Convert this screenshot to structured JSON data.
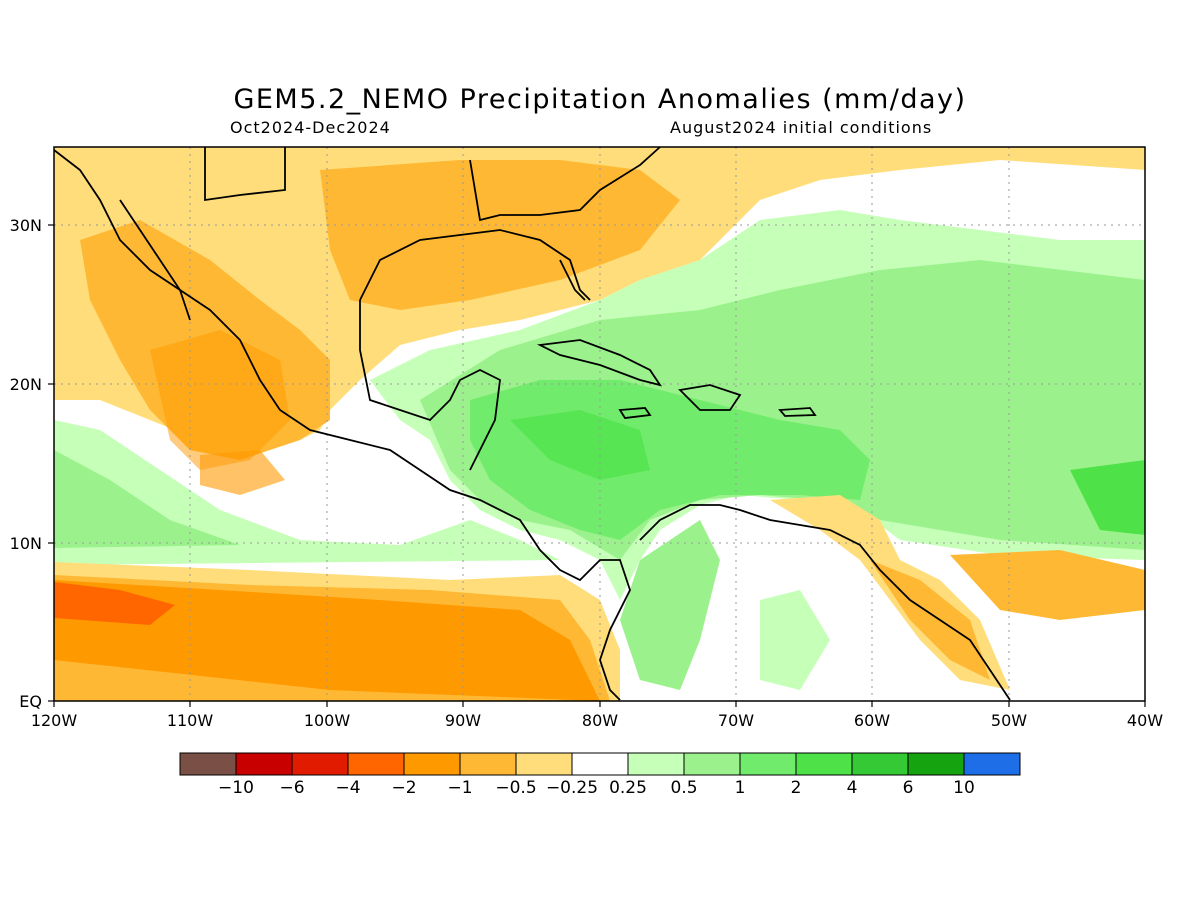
{
  "map": {
    "title": "GEM5.2_NEMO Precipitation Anomalies (mm/day)",
    "period": "Oct2024-Dec2024",
    "init": "August2024 initial conditions",
    "x_ticks": [
      "120W",
      "110W",
      "100W",
      "90W",
      "80W",
      "70W",
      "60W",
      "50W",
      "40W"
    ],
    "y_ticks": [
      "EQ",
      "10N",
      "20N",
      "30N"
    ],
    "colorbar": {
      "colors": [
        "#7a4f45",
        "#c80000",
        "#e11b00",
        "#ff6600",
        "#ff9900",
        "#ffb833",
        "#ffdd7a",
        "#ffffff",
        "#c6ffb8",
        "#9bf28c",
        "#71eb6b",
        "#4ee248",
        "#36c936",
        "#15a30f",
        "#1e6ee8"
      ],
      "labels": [
        "-10",
        "-6",
        "-4",
        "-2",
        "-1",
        "-0.5",
        "-0.25",
        "0.25",
        "0.5",
        "1",
        "2",
        "4",
        "6",
        "10"
      ]
    }
  }
}
